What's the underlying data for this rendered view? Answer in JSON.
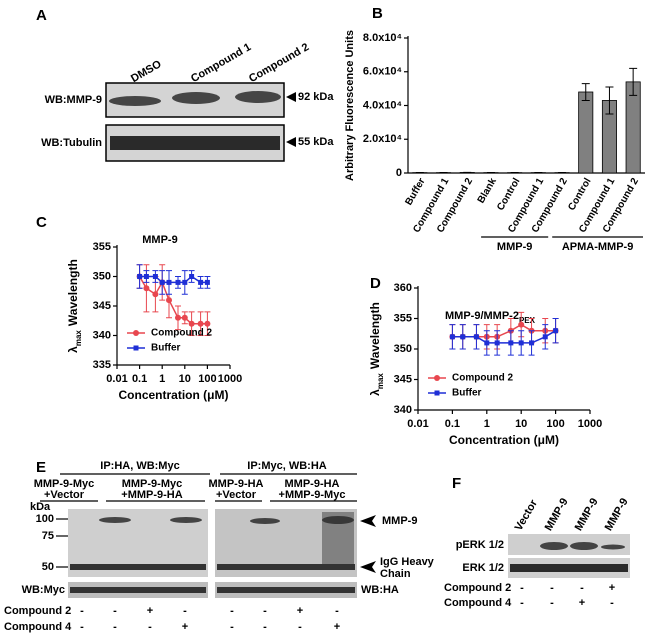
{
  "panel_a": {
    "letter": "A",
    "columns": [
      "DMSO",
      "Compound 1",
      "Compound 2"
    ],
    "rows": [
      "WB:MMP-9",
      "WB:Tubulin"
    ],
    "markers": [
      "92 kDa",
      "55 kDa"
    ]
  },
  "chart_data": [
    {
      "type": "bar",
      "panel": "B",
      "y_label": "Arbitrary Fluorescence Units",
      "categories": [
        "Buffer",
        "Compound 1",
        "Compound 2",
        "Blank",
        "Control",
        "Compound 1",
        "Compound 2",
        "Control",
        "Compound 1",
        "Compound 2"
      ],
      "values": [
        200,
        200,
        300,
        200,
        200,
        200,
        200,
        48000,
        43000,
        54000
      ],
      "errors": [
        100,
        100,
        100,
        100,
        100,
        100,
        100,
        5000,
        8000,
        8000
      ],
      "color": "#808080",
      "groups": [
        "MMP-9",
        "APMA-MMP-9"
      ],
      "ylim": [
        0,
        80000
      ],
      "yticks": [
        0,
        {
          "value": 20000,
          "label": "2.0x10⁴"
        },
        {
          "value": 40000,
          "label": "4.0x10⁴"
        },
        {
          "value": 60000,
          "label": "6.0x10⁴"
        },
        {
          "value": 80000,
          "label": "8.0x10⁴"
        }
      ]
    },
    {
      "type": "line",
      "panel": "C",
      "title": "MMP-9",
      "y_label": {
        "symbol": "λ",
        "subscript": "max",
        "text": "Wavelength"
      },
      "x_label": "Concentration (μM)",
      "x_scale": "log",
      "x": [
        0.1,
        0.2,
        0.5,
        1,
        2,
        5,
        10,
        20,
        50,
        100
      ],
      "series": [
        {
          "name": "Compound 2",
          "color": "#e8474f",
          "marker": "circle",
          "values": [
            350,
            348,
            347,
            349,
            346,
            343,
            343,
            342,
            342,
            342
          ],
          "errors": [
            2,
            4,
            3,
            3,
            3,
            2,
            1,
            2,
            2,
            2
          ]
        },
        {
          "name": "Buffer",
          "color": "#1f2fd6",
          "marker": "square",
          "values": [
            350,
            350,
            350,
            349,
            349,
            349,
            349,
            350,
            349,
            349
          ],
          "errors": [
            2,
            1,
            1,
            2,
            2,
            1,
            2,
            1,
            1,
            1
          ]
        }
      ],
      "xlim": [
        0.01,
        1000
      ],
      "xticks": [
        0.01,
        0.1,
        1,
        10,
        100,
        1000
      ],
      "ylim": [
        335,
        355
      ],
      "yticks": [
        335,
        340,
        345,
        350,
        355
      ],
      "legend": "lower left"
    },
    {
      "type": "line",
      "panel": "D",
      "title": "MMP-9/MMP-2",
      "title_subscript": "PEX",
      "y_label": {
        "symbol": "λ",
        "subscript": "max",
        "text": "Wavelength"
      },
      "x_label": "Concentration (μM)",
      "x_scale": "log",
      "x": [
        0.1,
        0.2,
        0.5,
        1,
        2,
        5,
        10,
        20,
        50,
        100
      ],
      "series": [
        {
          "name": "Compound 2",
          "color": "#e8474f",
          "marker": "circle",
          "values": [
            352,
            352,
            352,
            352,
            352,
            353,
            354,
            353,
            353,
            353
          ],
          "errors": [
            2,
            2,
            2,
            2,
            2,
            2,
            2,
            2,
            2,
            2
          ]
        },
        {
          "name": "Buffer",
          "color": "#1f2fd6",
          "marker": "square",
          "values": [
            352,
            352,
            352,
            351,
            351,
            351,
            351,
            351,
            352,
            353
          ],
          "errors": [
            2,
            2,
            2,
            2,
            2,
            2,
            2,
            2,
            2,
            2
          ]
        }
      ],
      "xlim": [
        0.01,
        1000
      ],
      "xticks": [
        0.01,
        0.1,
        1,
        10,
        100,
        1000
      ],
      "ylim": [
        340,
        360
      ],
      "yticks": [
        340,
        345,
        350,
        355,
        360
      ],
      "legend": "lower left"
    }
  ],
  "panel_e": {
    "letter": "E",
    "groups": [
      "IP:HA, WB:Myc",
      "IP:Myc, WB:HA"
    ],
    "lanes": [
      [
        "MMP-9-Myc",
        "+Vector"
      ],
      [
        "MMP-9-Myc",
        "+MMP-9-HA"
      ],
      [
        "MMP-9-HA",
        "+Vector"
      ],
      [
        "MMP-9-HA",
        "+MMP-9-Myc"
      ]
    ],
    "kda_label": "kDa",
    "kda_markers": [
      100,
      75,
      50
    ],
    "band_labels": [
      [
        "MMP-9"
      ],
      [
        "IgG Heavy",
        "Chain"
      ]
    ],
    "strips": [
      "WB:Myc",
      "WB:HA"
    ],
    "treatments": [
      {
        "name": "Compound 2",
        "signs": [
          "-",
          "-",
          "+",
          "-",
          "-",
          "-",
          "+",
          "-"
        ]
      },
      {
        "name": "Compound 4",
        "signs": [
          "-",
          "-",
          "-",
          "+",
          "-",
          "-",
          "-",
          "+"
        ]
      }
    ]
  },
  "panel_f": {
    "letter": "F",
    "lanes": [
      "Vector",
      "MMP-9",
      "MMP-9",
      "MMP-9"
    ],
    "rows": [
      "pERK 1/2",
      "ERK 1/2"
    ],
    "treatments": [
      {
        "name": "Compound 2",
        "signs": [
          "-",
          "-",
          "-",
          "+"
        ]
      },
      {
        "name": "Compound 4",
        "signs": [
          "-",
          "-",
          "+",
          "-"
        ]
      }
    ]
  }
}
